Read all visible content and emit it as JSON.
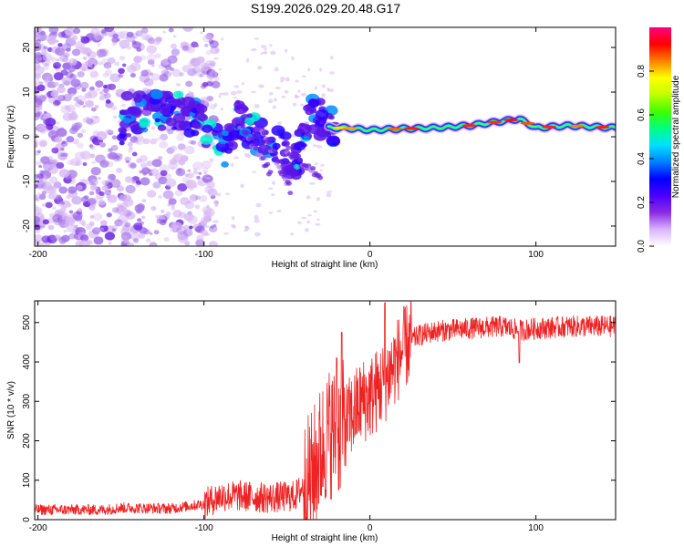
{
  "title": "S199.2026.029.20.48.G17",
  "chart_data": [
    {
      "type": "heatmap",
      "xlabel": "Height of straight line (km)",
      "ylabel": "Frequency (Hz)",
      "xlim": [
        -202,
        148
      ],
      "ylim": [
        -24.5,
        24.5
      ],
      "xticks": [
        -200,
        -100,
        0,
        100
      ],
      "yticks": [
        -20,
        -10,
        0,
        10,
        20
      ],
      "colorbar": {
        "label": "Normalized spectral amplitude",
        "range": [
          0,
          1
        ],
        "ticks": [
          "0.0",
          "0.2",
          "0.4",
          "0.6",
          "0.8"
        ],
        "colors": [
          "#ffffff",
          "#d9b3ff",
          "#8a2be2",
          "#4b00ff",
          "#0000ff",
          "#0080ff",
          "#00e0ff",
          "#00ff80",
          "#40ff00",
          "#c0ff00",
          "#ffff00",
          "#ff8000",
          "#ff0000",
          "#ff0080"
        ]
      },
      "ridge": [
        {
          "x": -148,
          "f": 6
        },
        {
          "x": -135,
          "f": 5.5
        },
        {
          "x": -120,
          "f": 6
        },
        {
          "x": -110,
          "f": 5
        },
        {
          "x": -98,
          "f": 2
        },
        {
          "x": -88,
          "f": -3
        },
        {
          "x": -80,
          "f": 4
        },
        {
          "x": -70,
          "f": 1
        },
        {
          "x": -60,
          "f": -1
        },
        {
          "x": -52,
          "f": -3
        },
        {
          "x": -45,
          "f": -6
        },
        {
          "x": -35,
          "f": 6
        },
        {
          "x": -25,
          "f": 2
        },
        {
          "x": -15,
          "f": 2
        },
        {
          "x": 0,
          "f": 1.5
        },
        {
          "x": 20,
          "f": 1.8
        },
        {
          "x": 40,
          "f": 2
        },
        {
          "x": 60,
          "f": 2.5
        },
        {
          "x": 80,
          "f": 3.5
        },
        {
          "x": 90,
          "f": 4
        },
        {
          "x": 100,
          "f": 2
        },
        {
          "x": 120,
          "f": 2.5
        },
        {
          "x": 148,
          "f": 2
        }
      ]
    },
    {
      "type": "line",
      "xlabel": "Height of straight line (km)",
      "ylabel": "SNR (10 * v/v)",
      "xlim": [
        -202,
        148
      ],
      "ylim": [
        0,
        555
      ],
      "xticks": [
        -200,
        -100,
        0,
        100
      ],
      "yticks": [
        0,
        100,
        200,
        300,
        400,
        500
      ],
      "color": "#ee2222",
      "profile": [
        {
          "x": -202,
          "y": 25
        },
        {
          "x": -160,
          "y": 25
        },
        {
          "x": -150,
          "y": 30
        },
        {
          "x": -120,
          "y": 28
        },
        {
          "x": -100,
          "y": 40
        },
        {
          "x": -90,
          "y": 60
        },
        {
          "x": -80,
          "y": 60
        },
        {
          "x": -60,
          "y": 55
        },
        {
          "x": -45,
          "y": 60
        },
        {
          "x": -35,
          "y": 110
        },
        {
          "x": -30,
          "y": 170
        },
        {
          "x": -25,
          "y": 220
        },
        {
          "x": -20,
          "y": 220
        },
        {
          "x": -15,
          "y": 240
        },
        {
          "x": -10,
          "y": 270
        },
        {
          "x": -5,
          "y": 300
        },
        {
          "x": 0,
          "y": 310
        },
        {
          "x": 5,
          "y": 330
        },
        {
          "x": 10,
          "y": 360
        },
        {
          "x": 15,
          "y": 395
        },
        {
          "x": 20,
          "y": 430
        },
        {
          "x": 25,
          "y": 455
        },
        {
          "x": 30,
          "y": 468
        },
        {
          "x": 40,
          "y": 478
        },
        {
          "x": 60,
          "y": 485
        },
        {
          "x": 80,
          "y": 490
        },
        {
          "x": 90,
          "y": 480
        },
        {
          "x": 100,
          "y": 485
        },
        {
          "x": 120,
          "y": 490
        },
        {
          "x": 148,
          "y": 490
        }
      ],
      "features": [
        {
          "x": -17,
          "y": 475
        },
        {
          "x": -20,
          "y": 410
        },
        {
          "x": 9,
          "y": 550
        },
        {
          "x": 90,
          "y": 398
        }
      ]
    }
  ]
}
